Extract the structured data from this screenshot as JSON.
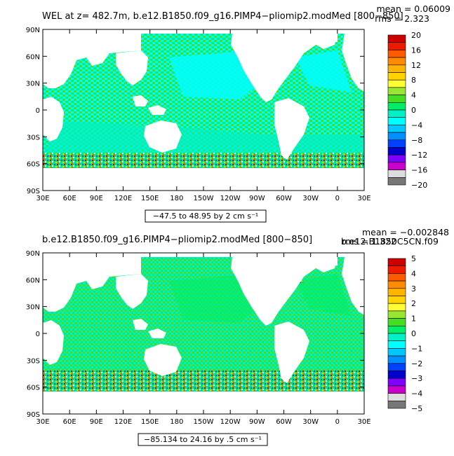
{
  "chart_data": [
    {
      "type": "heatmap",
      "title": "WEL at z= 482.7m, b.e12.B1850.f09_g16.PIMP4−pliomip2.modMed [800−850]",
      "stats": {
        "mean": "mean = 0.06009",
        "rms": "rms = 2.323"
      },
      "range_label": "−47.5 to 48.95 by 2 cm s⁻¹",
      "y_ticks": [
        "90N",
        "60N",
        "30N",
        "0",
        "30S",
        "60S",
        "90S"
      ],
      "x_ticks": [
        "30E",
        "60E",
        "90E",
        "120E",
        "150E",
        "180",
        "150W",
        "120W",
        "90W",
        "60W",
        "30W",
        "0",
        "30E"
      ],
      "colorbar": {
        "labels": [
          "20",
          "16",
          "12",
          "8",
          "4",
          "0",
          "−4",
          "−8",
          "−12",
          "−16",
          "−20"
        ],
        "colors": [
          "#cc0000",
          "#ee1a00",
          "#ff5a00",
          "#ff8c00",
          "#ffb400",
          "#ffd200",
          "#ffff33",
          "#99e632",
          "#44dd22",
          "#00ee66",
          "#00f0c8",
          "#00ffff",
          "#00c8ff",
          "#0090ff",
          "#0040ff",
          "#0000cc",
          "#8000ff",
          "#cc00cc",
          "#dddddd",
          "#777777"
        ]
      }
    },
    {
      "type": "heatmap",
      "title": "b.e12.B1850.f09_g16.PIMP4−pliomip2.modMed [800−850]",
      "stats": {
        "mean": "mean = −0.002848",
        "rms": "rms = 1.322"
      },
      "right_label": "b.e12.B1850C5CN.f09",
      "range_label": "−85.134 to 24.16 by .5 cm s⁻¹",
      "y_ticks": [
        "90N",
        "60N",
        "30N",
        "0",
        "30S",
        "60S",
        "90S"
      ],
      "x_ticks": [
        "30E",
        "60E",
        "90E",
        "120E",
        "150E",
        "180",
        "150W",
        "120W",
        "90W",
        "60W",
        "30W",
        "0",
        "30E"
      ],
      "colorbar": {
        "labels": [
          "5",
          "4",
          "3",
          "2",
          "1",
          "0",
          "−1",
          "−2",
          "−3",
          "−4",
          "−5"
        ],
        "colors": [
          "#cc0000",
          "#ee1a00",
          "#ff5a00",
          "#ff8c00",
          "#ffb400",
          "#ffd200",
          "#ffff33",
          "#99e632",
          "#44dd22",
          "#00ee66",
          "#00f0c8",
          "#00ffff",
          "#00c8ff",
          "#0090ff",
          "#0040ff",
          "#0000cc",
          "#8000ff",
          "#cc00cc",
          "#dddddd",
          "#777777"
        ]
      }
    }
  ]
}
